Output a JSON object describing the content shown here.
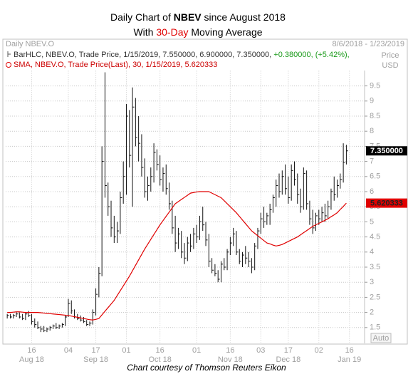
{
  "header": {
    "source": "Daily NBEV.O",
    "range": "8/6/2018 - 1/23/2019",
    "axis_label": [
      "Price",
      "USD"
    ]
  },
  "chart_data": {
    "type": "hlc",
    "title": [
      "Daily Chart of ",
      "NBEV",
      " since August 2018"
    ],
    "subtitle": [
      "With ",
      "30-Day",
      " Moving Average"
    ],
    "categories": [
      null,
      null,
      null,
      null,
      null,
      null,
      null,
      null,
      "16",
      null,
      null,
      null,
      null,
      null,
      null,
      null,
      null,
      null,
      null,
      null,
      "04",
      null,
      null,
      null,
      null,
      null,
      null,
      null,
      null,
      "17",
      null,
      null,
      null,
      null,
      null,
      null,
      null,
      null,
      null,
      "01",
      null,
      null,
      null,
      null,
      null,
      null,
      null,
      null,
      null,
      null,
      "16",
      null,
      null,
      null,
      null,
      null,
      null,
      null,
      null,
      null,
      null,
      null,
      "01",
      null,
      null,
      null,
      null,
      null,
      null,
      null,
      null,
      null,
      null,
      "16",
      null,
      null,
      null,
      null,
      null,
      null,
      null,
      null,
      null,
      "03",
      null,
      null,
      null,
      null,
      null,
      null,
      null,
      null,
      "17",
      null,
      null,
      null,
      null,
      null,
      null,
      null,
      null,
      null,
      "02",
      null,
      null,
      null,
      null,
      null,
      null,
      null,
      null,
      null,
      "16",
      null,
      null,
      null,
      null
    ],
    "month_labels": [
      {
        "index": 8,
        "label": "Aug 18"
      },
      {
        "index": 29,
        "label": "Sep 18"
      },
      {
        "index": 50,
        "label": "Oct 18"
      },
      {
        "index": 73,
        "label": "Nov 18"
      },
      {
        "index": 92,
        "label": "Dec 18"
      },
      {
        "index": 112,
        "label": "Jan 19"
      }
    ],
    "series": [
      {
        "legend": {
          "text": "BarHLC, NBEV.O, Trade Price, 1/15/2019, 7.550000, 6.900000, 7.350000, ",
          "change": "+0.380000, (+5.42%),"
        },
        "color": "#111111",
        "high": [
          1.95,
          1.95,
          1.95,
          2.0,
          2.0,
          1.95,
          2.0,
          2.05,
          1.95,
          1.8,
          1.7,
          1.55,
          1.55,
          1.5,
          1.55,
          1.6,
          1.65,
          1.6,
          1.65,
          1.9,
          2.45,
          2.4,
          2.1,
          1.95,
          1.9,
          1.85,
          1.75,
          1.7,
          2.1,
          2.8,
          3.5,
          7.5,
          9.95,
          6.3,
          5.7,
          5.2,
          5.0,
          6.0,
          7.0,
          8.9,
          8.7,
          9.45,
          9.1,
          8.5,
          7.9,
          7.1,
          6.5,
          6.8,
          7.6,
          7.4,
          7.2,
          6.8,
          6.9,
          6.3,
          5.7,
          5.2,
          4.8,
          4.7,
          4.3,
          4.5,
          4.6,
          4.8,
          4.9,
          5.2,
          5.5,
          5.0,
          4.6,
          3.8,
          3.6,
          3.4,
          3.7,
          3.8,
          4.1,
          4.5,
          4.8,
          4.7,
          4.1,
          4.0,
          4.2,
          4.0,
          3.8,
          4.3,
          4.8,
          5.3,
          5.5,
          5.3,
          5.6,
          5.9,
          6.4,
          6.6,
          6.7,
          6.9,
          6.5,
          6.9,
          7.0,
          6.6,
          6.1,
          6.8,
          6.7,
          5.7,
          5.4,
          5.3,
          5.4,
          5.5,
          5.6,
          5.7,
          6.1,
          6.5,
          6.4,
          6.6,
          7.6,
          7.55,
          null,
          null,
          null,
          null,
          null
        ],
        "low": [
          1.8,
          1.8,
          1.8,
          1.85,
          1.8,
          1.75,
          1.75,
          1.85,
          1.6,
          1.5,
          1.45,
          1.35,
          1.35,
          1.35,
          1.4,
          1.45,
          1.45,
          1.45,
          1.5,
          1.55,
          1.85,
          1.95,
          1.8,
          1.75,
          1.7,
          1.65,
          1.55,
          1.55,
          1.6,
          1.9,
          2.5,
          3.2,
          5.8,
          5.2,
          4.5,
          4.3,
          4.3,
          4.6,
          5.6,
          5.9,
          6.8,
          5.5,
          7.5,
          7.0,
          6.5,
          5.8,
          5.7,
          6.0,
          6.3,
          6.7,
          6.2,
          6.0,
          5.9,
          5.4,
          4.6,
          4.0,
          4.1,
          3.8,
          3.6,
          3.7,
          4.0,
          4.1,
          4.3,
          4.4,
          4.7,
          4.2,
          3.5,
          3.3,
          3.2,
          3.0,
          3.0,
          3.4,
          3.4,
          3.9,
          4.2,
          3.9,
          3.6,
          3.5,
          3.6,
          3.5,
          3.3,
          3.4,
          4.1,
          4.6,
          4.8,
          4.9,
          4.9,
          5.3,
          5.5,
          5.8,
          5.9,
          5.9,
          5.6,
          5.7,
          6.2,
          5.6,
          5.3,
          5.4,
          5.4,
          4.9,
          4.6,
          4.7,
          4.9,
          5.0,
          5.0,
          5.1,
          5.4,
          5.7,
          5.8,
          6.1,
          6.3,
          6.9,
          null,
          null,
          null,
          null,
          null
        ],
        "close": [
          1.9,
          1.85,
          1.9,
          1.95,
          1.85,
          1.8,
          1.95,
          1.9,
          1.7,
          1.6,
          1.5,
          1.45,
          1.4,
          1.45,
          1.5,
          1.55,
          1.5,
          1.55,
          1.6,
          1.85,
          2.3,
          2.05,
          1.85,
          1.8,
          1.75,
          1.7,
          1.6,
          1.65,
          2.0,
          2.6,
          3.3,
          7.0,
          6.2,
          5.5,
          4.8,
          4.5,
          4.7,
          5.8,
          6.5,
          8.5,
          7.2,
          8.8,
          7.8,
          7.6,
          6.8,
          6.0,
          6.2,
          6.5,
          7.3,
          6.9,
          6.4,
          6.6,
          6.1,
          5.6,
          4.8,
          4.3,
          4.6,
          4.0,
          3.8,
          4.3,
          4.2,
          4.6,
          4.5,
          5.0,
          4.9,
          4.4,
          3.7,
          3.4,
          3.3,
          3.1,
          3.6,
          3.5,
          4.0,
          4.3,
          4.6,
          4.0,
          3.7,
          3.9,
          3.8,
          3.7,
          3.5,
          4.2,
          4.7,
          5.1,
          5.0,
          5.2,
          5.4,
          5.8,
          6.2,
          6.0,
          6.5,
          6.1,
          5.8,
          6.7,
          6.4,
          5.9,
          5.5,
          6.6,
          5.6,
          5.1,
          4.8,
          5.2,
          5.1,
          5.3,
          5.2,
          5.5,
          6.0,
          5.9,
          6.2,
          6.4,
          6.97,
          7.35,
          null,
          null,
          null,
          null,
          null
        ],
        "last_label": "7.350000",
        "label_color": "#000000"
      },
      {
        "legend": {
          "text": "SMA, NBEV.O, Trade Price(Last), 30, 1/15/2019, 5.620333"
        },
        "color": "#e00000",
        "values": [
          2.0,
          2.0,
          2.01,
          2.02,
          2.02,
          2.01,
          2.0,
          2.0,
          2.0,
          2.0,
          2.0,
          1.99,
          1.98,
          1.97,
          1.96,
          1.95,
          1.94,
          1.93,
          1.92,
          1.91,
          1.9,
          1.88,
          1.86,
          1.84,
          1.82,
          1.8,
          1.78,
          1.76,
          1.75,
          1.77,
          1.8,
          1.92,
          2.04,
          2.16,
          2.28,
          2.4,
          2.56,
          2.72,
          2.88,
          3.04,
          3.2,
          3.38,
          3.56,
          3.74,
          3.92,
          4.1,
          4.26,
          4.42,
          4.58,
          4.74,
          4.9,
          5.04,
          5.18,
          5.32,
          5.46,
          5.6,
          5.67,
          5.74,
          5.81,
          5.88,
          5.95,
          5.97,
          5.99,
          6.0,
          6.0,
          6.0,
          6.0,
          5.95,
          5.9,
          5.85,
          5.8,
          5.7,
          5.6,
          5.5,
          5.4,
          5.3,
          5.18,
          5.06,
          4.94,
          4.82,
          4.7,
          4.62,
          4.54,
          4.46,
          4.38,
          4.3,
          4.27,
          4.23,
          4.2,
          4.22,
          4.25,
          4.3,
          4.35,
          4.4,
          4.45,
          4.5,
          4.57,
          4.64,
          4.71,
          4.78,
          4.85,
          4.9,
          4.95,
          5.0,
          5.05,
          5.1,
          5.17,
          5.23,
          5.3,
          5.41,
          5.51,
          5.62,
          null,
          null,
          null,
          null,
          null
        ],
        "last_label": "5.620333",
        "label_color": "#e00000"
      }
    ],
    "ylim": [
      1,
      10
    ],
    "yticks": [
      1.5,
      2,
      2.5,
      3,
      3.5,
      4,
      4.5,
      5,
      5.5,
      6,
      6.5,
      7,
      7.5,
      8,
      8.5,
      9,
      9.5
    ],
    "grid": true
  },
  "footer": {
    "auto": "Auto",
    "caption": "Chart courtesy of Thomson Reuters Eikon"
  }
}
